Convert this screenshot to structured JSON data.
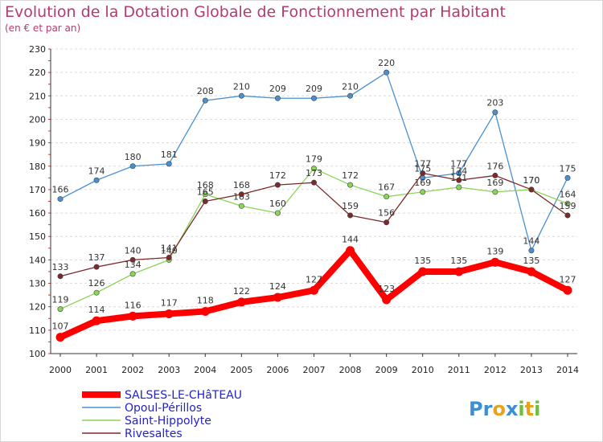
{
  "header": {
    "title": "Evolution de la Dotation Globale de Fonctionnement par Habitant",
    "subtitle": "(en € et par an)"
  },
  "brand": {
    "name": "Proxiti",
    "letters": [
      "P",
      "r",
      "o",
      "x",
      "i",
      "t",
      "i"
    ],
    "colors": [
      "#3b8fd6",
      "#3b8fd6",
      "#e8a21c",
      "#3b8fd6",
      "#6bbf3a",
      "#e8a21c",
      "#6bbf3a"
    ]
  },
  "chart_data": {
    "type": "line",
    "x": [
      2000,
      2001,
      2002,
      2003,
      2004,
      2005,
      2006,
      2007,
      2008,
      2009,
      2010,
      2011,
      2012,
      2013,
      2014
    ],
    "ylim": [
      100,
      230
    ],
    "yticks": [
      100,
      110,
      120,
      130,
      140,
      150,
      160,
      170,
      180,
      190,
      200,
      210,
      220,
      230
    ],
    "grid": "horizontal",
    "legend_position": "bottom-left",
    "series": [
      {
        "name": "SALSES-LE-CHâTEAU",
        "color": "#ff0000",
        "values": [
          107,
          114,
          116,
          117,
          118,
          122,
          124,
          127,
          144,
          123,
          135,
          135,
          139,
          135,
          127
        ]
      },
      {
        "name": "Opoul-Périllos",
        "color": "#4a90d0",
        "values": [
          166,
          174,
          180,
          181,
          208,
          210,
          209,
          209,
          210,
          220,
          175,
          177,
          203,
          144,
          175
        ]
      },
      {
        "name": "Saint-Hippolyte",
        "color": "#8ad45a",
        "values": [
          119,
          126,
          134,
          140,
          168,
          163,
          160,
          179,
          172,
          167,
          169,
          171,
          169,
          170,
          164
        ]
      },
      {
        "name": "Rivesaltes",
        "color": "#7a2a2a",
        "values": [
          133,
          137,
          140,
          141,
          165,
          168,
          172,
          173,
          159,
          156,
          177,
          174,
          176,
          170,
          159
        ]
      }
    ]
  }
}
